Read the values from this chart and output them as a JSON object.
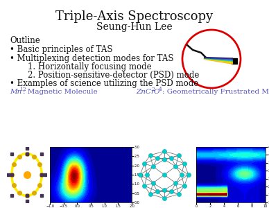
{
  "title": "Triple-Axis Spectroscopy",
  "author": "Seung-Hun Lee",
  "outline_label": "Outline",
  "bullet1": "Basic principles of TAS",
  "bullet2": "Multiplexing detection modes for TAS",
  "bullet3": "Examples of science utilizing the PSD mode",
  "sub1": "1. Horizontally focusing mode",
  "sub2": "2. Position-sensitive-detector (PSD) mode",
  "label1_italic": "Mn",
  "label1_sub": "12",
  "label1_rest": ": Magnetic Molecule",
  "label2_italic": "ZnCr",
  "label2_sub1": "2",
  "label2_mid": "O",
  "label2_sub2": "4",
  "label2_rest": ": Geometrically Frustrated Magnet",
  "label_color": "#5555bb",
  "title_color": "#111111",
  "bullet_color": "#111111",
  "circle_color": "#dd0000"
}
